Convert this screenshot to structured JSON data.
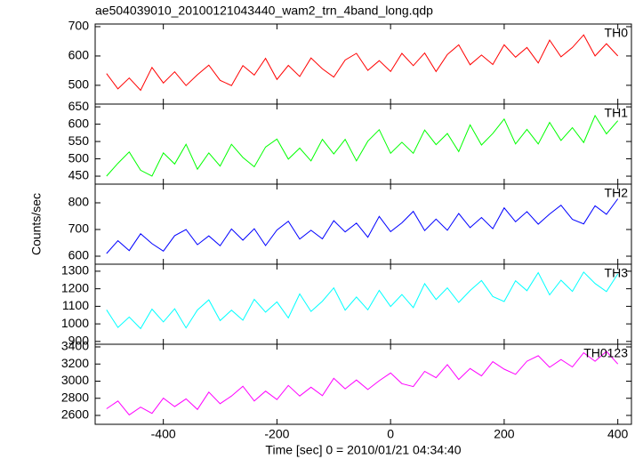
{
  "chart_data": [
    {
      "type": "line",
      "title": "ae504039010_20100121043440_wam2_trn_4band_long.qdp",
      "x": [
        -500,
        -480,
        -460,
        -440,
        -420,
        -400,
        -380,
        -360,
        -340,
        -320,
        -300,
        -280,
        -260,
        -240,
        -220,
        -200,
        -180,
        -160,
        -140,
        -120,
        -100,
        -80,
        -60,
        -40,
        -20,
        0,
        20,
        40,
        60,
        80,
        100,
        120,
        140,
        160,
        180,
        200,
        220,
        240,
        260,
        280,
        300,
        320,
        340,
        360,
        380,
        400
      ],
      "series": [
        {
          "name": "TH0",
          "color": "#ff0000",
          "values": [
            540,
            488,
            525,
            483,
            561,
            508,
            546,
            499,
            536,
            569,
            517,
            499,
            567,
            535,
            592,
            520,
            568,
            530,
            593,
            556,
            528,
            586,
            609,
            551,
            584,
            547,
            609,
            567,
            610,
            547,
            605,
            638,
            570,
            603,
            571,
            638,
            596,
            629,
            576,
            654,
            597,
            629,
            672,
            600,
            642,
            600
          ]
        }
      ],
      "xlim": [
        -520,
        424
      ],
      "xticks": [
        -400,
        -200,
        0,
        200,
        400
      ],
      "ylim": [
        436,
        709
      ],
      "yticks": [
        500,
        600,
        700
      ]
    },
    {
      "type": "line",
      "x": [
        -500,
        -480,
        -460,
        -440,
        -420,
        -400,
        -380,
        -360,
        -340,
        -320,
        -300,
        -280,
        -260,
        -240,
        -220,
        -200,
        -180,
        -160,
        -140,
        -120,
        -100,
        -80,
        -60,
        -40,
        -20,
        0,
        20,
        40,
        60,
        80,
        100,
        120,
        140,
        160,
        180,
        200,
        220,
        240,
        260,
        280,
        300,
        320,
        340,
        360,
        380,
        400
      ],
      "series": [
        {
          "name": "TH1",
          "color": "#00ff00",
          "values": [
            450,
            487,
            520,
            467,
            450,
            517,
            485,
            542,
            470,
            517,
            479,
            542,
            504,
            477,
            534,
            557,
            499,
            531,
            494,
            556,
            514,
            556,
            494,
            551,
            584,
            516,
            548,
            516,
            583,
            541,
            573,
            521,
            598,
            540,
            573,
            615,
            543,
            585,
            543,
            605,
            553,
            590,
            547,
            625,
            572,
            610
          ]
        }
      ],
      "xlim": [
        -520,
        424
      ],
      "xticks": [
        -400,
        -200,
        0,
        200,
        400
      ],
      "ylim": [
        427,
        658
      ],
      "yticks": [
        450,
        500,
        550,
        600,
        650
      ]
    },
    {
      "type": "line",
      "ylabel": "Counts/sec",
      "x": [
        -500,
        -480,
        -460,
        -440,
        -420,
        -400,
        -380,
        -360,
        -340,
        -320,
        -300,
        -280,
        -260,
        -240,
        -220,
        -200,
        -180,
        -160,
        -140,
        -120,
        -100,
        -80,
        -60,
        -40,
        -20,
        0,
        20,
        40,
        60,
        80,
        100,
        120,
        140,
        160,
        180,
        200,
        220,
        240,
        260,
        280,
        300,
        320,
        340,
        360,
        380,
        400
      ],
      "series": [
        {
          "name": "TH2",
          "color": "#0000ff",
          "values": [
            610,
            658,
            621,
            684,
            647,
            619,
            677,
            700,
            643,
            676,
            639,
            702,
            660,
            703,
            640,
            698,
            731,
            664,
            697,
            665,
            733,
            691,
            724,
            671,
            749,
            692,
            725,
            768,
            696,
            739,
            697,
            760,
            707,
            745,
            703,
            781,
            729,
            767,
            720,
            758,
            791,
            738,
            721,
            789,
            757,
            815
          ]
        }
      ],
      "xlim": [
        -520,
        424
      ],
      "xticks": [
        -400,
        -200,
        0,
        200,
        400
      ],
      "ylim": [
        570,
        870
      ],
      "yticks": [
        600,
        700,
        800
      ]
    },
    {
      "type": "line",
      "x": [
        -500,
        -480,
        -460,
        -440,
        -420,
        -400,
        -380,
        -360,
        -340,
        -320,
        -300,
        -280,
        -260,
        -240,
        -220,
        -200,
        -180,
        -160,
        -140,
        -120,
        -100,
        -80,
        -60,
        -40,
        -20,
        0,
        20,
        40,
        60,
        80,
        100,
        120,
        140,
        160,
        180,
        200,
        220,
        240,
        260,
        280,
        300,
        320,
        340,
        360,
        380,
        400
      ],
      "series": [
        {
          "name": "TH3",
          "color": "#00ffff",
          "values": [
            1080,
            980,
            1039,
            973,
            1084,
            1011,
            1086,
            977,
            1079,
            1137,
            1019,
            1078,
            1021,
            1140,
            1067,
            1125,
            1034,
            1171,
            1071,
            1129,
            1205,
            1078,
            1153,
            1080,
            1191,
            1099,
            1167,
            1093,
            1229,
            1139,
            1205,
            1122,
            1190,
            1247,
            1156,
            1127,
            1246,
            1189,
            1292,
            1165,
            1249,
            1185,
            1295,
            1230,
            1184,
            1285
          ]
        }
      ],
      "xlim": [
        -520,
        424
      ],
      "xticks": [
        -400,
        -200,
        0,
        200,
        400
      ],
      "ylim": [
        884,
        1340
      ],
      "yticks": [
        900,
        1000,
        1100,
        1200,
        1300
      ]
    },
    {
      "type": "line",
      "xlabel": "Time [sec] 0 = 2010/01/21 04:34:40",
      "x": [
        -500,
        -480,
        -460,
        -440,
        -420,
        -400,
        -380,
        -360,
        -340,
        -320,
        -300,
        -280,
        -260,
        -240,
        -220,
        -200,
        -180,
        -160,
        -140,
        -120,
        -100,
        -80,
        -60,
        -40,
        -20,
        0,
        20,
        40,
        60,
        80,
        100,
        120,
        140,
        160,
        180,
        200,
        220,
        240,
        260,
        280,
        300,
        320,
        340,
        360,
        380,
        400
      ],
      "series": [
        {
          "name": "TH0123",
          "color": "#ff00ff",
          "values": [
            2678,
            2768,
            2606,
            2697,
            2624,
            2801,
            2703,
            2793,
            2669,
            2872,
            2737,
            2826,
            2941,
            2768,
            2883,
            2785,
            2950,
            2826,
            2929,
            2831,
            3033,
            2910,
            3013,
            2902,
            3005,
            3095,
            2971,
            2936,
            3114,
            3040,
            3193,
            3020,
            3147,
            3061,
            3227,
            3140,
            3080,
            3233,
            3297,
            3162,
            3252,
            3166,
            3331,
            3233,
            3348,
            3200
          ]
        }
      ],
      "xlim": [
        -520,
        424
      ],
      "xticks": [
        -400,
        -200,
        0,
        200,
        400
      ],
      "ylim": [
        2496,
        3431
      ],
      "yticks": [
        2600,
        2800,
        3000,
        3200,
        3400
      ]
    }
  ]
}
